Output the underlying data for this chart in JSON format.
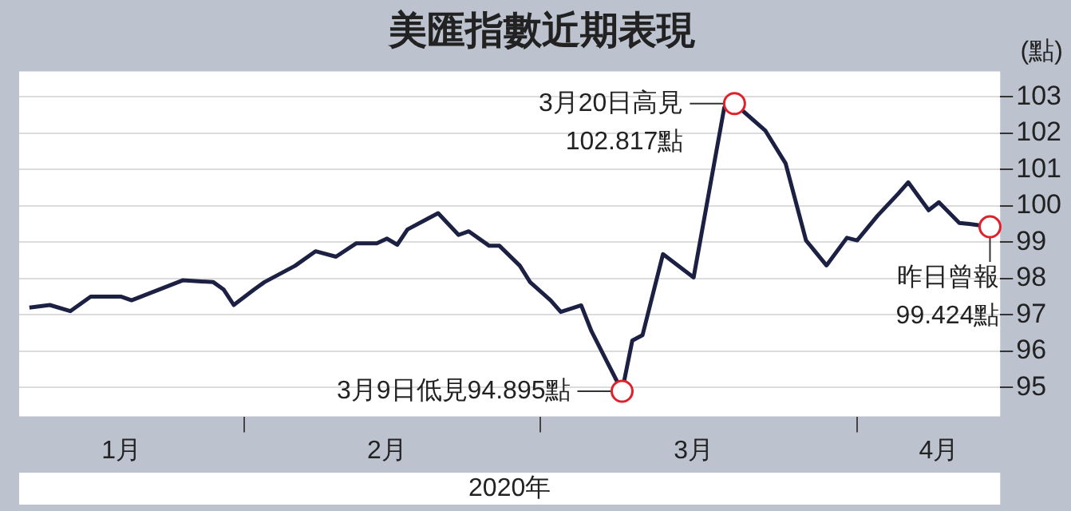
{
  "chart_data": {
    "type": "line",
    "title": "美匯指數近期表現",
    "ylabel": "(點)",
    "xlabel": "2020年",
    "x": [
      "2020-01-11",
      "2020-01-13",
      "2020-01-15",
      "2020-01-17",
      "2020-01-20",
      "2020-01-21",
      "2020-01-26",
      "2020-01-29",
      "2020-01-30",
      "2020-01-31",
      "2020-02-02",
      "2020-02-03",
      "2020-02-06",
      "2020-02-08",
      "2020-02-10",
      "2020-02-12",
      "2020-02-14",
      "2020-02-15",
      "2020-02-16",
      "2020-02-17",
      "2020-02-19",
      "2020-02-20",
      "2020-02-22",
      "2020-02-23",
      "2020-02-25",
      "2020-02-26",
      "2020-02-28",
      "2020-02-29",
      "2020-03-02",
      "2020-03-03",
      "2020-03-05",
      "2020-03-06",
      "2020-03-09",
      "2020-03-10",
      "2020-03-11",
      "2020-03-13",
      "2020-03-16",
      "2020-03-19",
      "2020-03-20",
      "2020-03-23",
      "2020-03-25",
      "2020-03-27",
      "2020-03-29",
      "2020-03-31",
      "2020-04-01",
      "2020-04-03",
      "2020-04-05",
      "2020-04-06",
      "2020-04-08",
      "2020-04-09",
      "2020-04-11",
      "2020-04-12",
      "2020-04-14"
    ],
    "series": [
      {
        "color": "#1c2143",
        "values": [
          97.2,
          97.27,
          97.1,
          97.5,
          97.5,
          97.4,
          97.95,
          97.9,
          97.7,
          97.27,
          97.7,
          97.9,
          98.35,
          98.75,
          98.6,
          98.97,
          98.97,
          99.1,
          98.93,
          99.35,
          99.65,
          99.8,
          99.2,
          99.3,
          98.9,
          98.9,
          98.35,
          97.9,
          97.4,
          97.08,
          97.26,
          96.55,
          94.895,
          96.29,
          96.44,
          98.67,
          98.03,
          102.71,
          102.817,
          102.08,
          101.17,
          99.05,
          98.36,
          99.12,
          99.05,
          99.73,
          100.33,
          100.65,
          99.88,
          100.1,
          99.53,
          99.5,
          99.424
        ]
      }
    ],
    "xlim": [
      "2020-01-10",
      "2020-04-15"
    ],
    "xticks": [
      {
        "value": "2020-01-20",
        "label": "1月"
      },
      {
        "value": "2020-02-01",
        "label": null
      },
      {
        "value": "2020-02-15",
        "label": "2月"
      },
      {
        "value": "2020-03-01",
        "label": null
      },
      {
        "value": "2020-03-16",
        "label": "3月"
      },
      {
        "value": "2020-04-01",
        "label": null
      },
      {
        "value": "2020-04-09",
        "label": "4月"
      }
    ],
    "ylim": [
      94.2,
      103.7
    ],
    "yticks": [
      95,
      96,
      97,
      98,
      99,
      100,
      101,
      102,
      103
    ],
    "grid": "y",
    "legend": false,
    "marker": "none",
    "line_style": "solid",
    "annotations": [
      {
        "text": "3月9日低見94.895點",
        "x": "2020-03-09",
        "y": 94.895
      },
      {
        "text": "3月20日高見\n102.817點",
        "x": "2020-03-20",
        "y": 102.817
      },
      {
        "text": "昨日曾報\n99.424點",
        "x": "2020-04-14",
        "y": 99.424
      }
    ]
  }
}
